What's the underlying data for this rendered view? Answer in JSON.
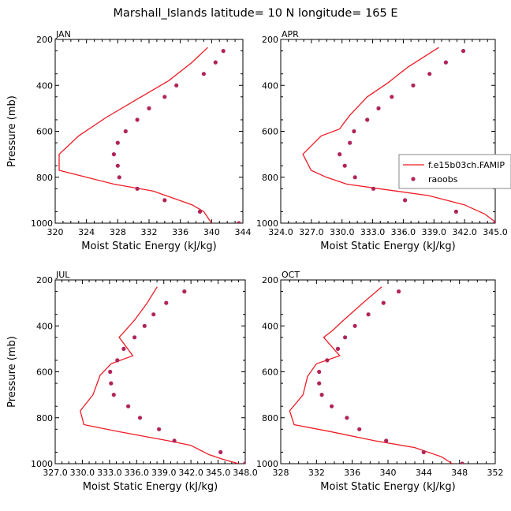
{
  "title": "Marshall_Islands   latitude=  10 N  longitude=  165 E",
  "colors": {
    "model": "#ee1c25",
    "obs": "#b0245a",
    "axis": "#000000"
  },
  "chart_data": [
    {
      "type": "line",
      "panel": "JAN",
      "title": "JAN",
      "xlabel": "Moist Static Energy (kJ/kg)",
      "ylabel": "Pressure (mb)",
      "xlim": [
        320,
        344
      ],
      "ylim": [
        1000,
        200
      ],
      "xticks": [
        320,
        324,
        328,
        332,
        336,
        340,
        344
      ],
      "xtick_labels": [
        "320",
        "324",
        "328",
        "332",
        "336",
        "340",
        "344"
      ],
      "yticks": [
        200,
        400,
        600,
        800,
        1000
      ],
      "ytick_labels": [
        "200",
        "400",
        "600",
        "800",
        "1000"
      ],
      "legend": null,
      "series": [
        {
          "name": "f.e15b03ch.FAMIP",
          "kind": "line",
          "points": [
            [
              339.5,
              235
            ],
            [
              337.5,
              300
            ],
            [
              334.5,
              380
            ],
            [
              330.5,
              460
            ],
            [
              326.5,
              540
            ],
            [
              323,
              620
            ],
            [
              320.5,
              700
            ],
            [
              320.5,
              770
            ],
            [
              324,
              800
            ],
            [
              327.5,
              830
            ],
            [
              332.5,
              860
            ],
            [
              337.5,
              920
            ],
            [
              339,
              950
            ],
            [
              340,
              1000
            ]
          ]
        },
        {
          "name": "raoobs",
          "kind": "scatter",
          "points": [
            [
              341.5,
              250
            ],
            [
              340.5,
              300
            ],
            [
              339,
              350
            ],
            [
              335.5,
              400
            ],
            [
              334,
              450
            ],
            [
              332,
              500
            ],
            [
              330.5,
              550
            ],
            [
              329,
              600
            ],
            [
              328,
              650
            ],
            [
              327.5,
              700
            ],
            [
              328,
              750
            ],
            [
              328.2,
              800
            ],
            [
              330.5,
              850
            ],
            [
              334,
              900
            ],
            [
              338.5,
              950
            ],
            [
              343.5,
              1000
            ]
          ]
        }
      ]
    },
    {
      "type": "line",
      "panel": "APR",
      "title": "APR",
      "xlabel": "Moist Static Energy (kJ/kg)",
      "ylabel": "",
      "xlim": [
        324.03,
        345.03
      ],
      "ylim": [
        1000,
        200
      ],
      "xticks": [
        324.03,
        327.03,
        330.03,
        333.03,
        336.03,
        339.03,
        342.03,
        345.03
      ],
      "xtick_labels": [
        "324.0",
        "327.0",
        "330.0",
        "333.0",
        "336.0",
        "339.0",
        "342.0",
        "345.0"
      ],
      "yticks": [
        200,
        400,
        600,
        800,
        1000
      ],
      "ytick_labels": [
        "200",
        "400",
        "600",
        "800",
        "1000"
      ],
      "legend": {
        "location": "right",
        "entries": [
          "f.e15b03ch.FAMIP",
          "raoobs"
        ]
      },
      "series": [
        {
          "name": "f.e15b03ch.FAMIP",
          "kind": "line",
          "points": [
            [
              339.5,
              235
            ],
            [
              336.5,
              320
            ],
            [
              334.5,
              390
            ],
            [
              332.5,
              450
            ],
            [
              330.8,
              530
            ],
            [
              330.2,
              565
            ],
            [
              329.8,
              590
            ],
            [
              328,
              620
            ],
            [
              326.2,
              700
            ],
            [
              327,
              770
            ],
            [
              328.5,
              800
            ],
            [
              330.5,
              830
            ],
            [
              334.5,
              855
            ],
            [
              338.5,
              880
            ],
            [
              342,
              920
            ],
            [
              344,
              960
            ],
            [
              345.2,
              1000
            ]
          ]
        },
        {
          "name": "raoobs",
          "kind": "scatter",
          "points": [
            [
              341.9,
              250
            ],
            [
              340.2,
              300
            ],
            [
              338.6,
              350
            ],
            [
              337,
              400
            ],
            [
              334.9,
              450
            ],
            [
              333.6,
              500
            ],
            [
              332.5,
              550
            ],
            [
              331.2,
              600
            ],
            [
              330.8,
              650
            ],
            [
              329.8,
              700
            ],
            [
              330.3,
              750
            ],
            [
              331.3,
              800
            ],
            [
              333.1,
              850
            ],
            [
              336.2,
              900
            ],
            [
              341.2,
              950
            ],
            [
              345,
              1000
            ]
          ]
        }
      ]
    },
    {
      "type": "line",
      "panel": "JUL",
      "title": "JUL",
      "xlabel": "Moist Static Energy (kJ/kg)",
      "ylabel": "Pressure (mb)",
      "xlim": [
        327.03,
        348.03
      ],
      "ylim": [
        1000,
        200
      ],
      "xticks": [
        327.03,
        330.03,
        333.03,
        336.03,
        339.03,
        342.03,
        345.03,
        348.03
      ],
      "xtick_labels": [
        "327.0",
        "330.0",
        "333.0",
        "336.0",
        "339.0",
        "342.0",
        "345.0",
        "348.0"
      ],
      "yticks": [
        200,
        400,
        600,
        800,
        1000
      ],
      "ytick_labels": [
        "200",
        "400",
        "600",
        "800",
        "1000"
      ],
      "legend": null,
      "series": [
        {
          "name": "f.e15b03ch.FAMIP",
          "kind": "line",
          "points": [
            [
              338.3,
              230
            ],
            [
              337.2,
              300
            ],
            [
              335.8,
              375
            ],
            [
              335,
              410
            ],
            [
              334.1,
              450
            ],
            [
              335.6,
              530
            ],
            [
              333.2,
              565
            ],
            [
              332,
              615
            ],
            [
              331.2,
              700
            ],
            [
              329.8,
              770
            ],
            [
              330.2,
              830
            ],
            [
              334,
              860
            ],
            [
              339.5,
              900
            ],
            [
              342,
              920
            ],
            [
              344,
              960
            ],
            [
              345.5,
              980
            ],
            [
              347.3,
              1000
            ]
          ]
        },
        {
          "name": "raoobs",
          "kind": "scatter",
          "points": [
            [
              341.3,
              250
            ],
            [
              339.3,
              300
            ],
            [
              337.9,
              350
            ],
            [
              336.9,
              400
            ],
            [
              335.8,
              450
            ],
            [
              334.6,
              500
            ],
            [
              333.9,
              550
            ],
            [
              333.1,
              600
            ],
            [
              333.2,
              650
            ],
            [
              333.5,
              700
            ],
            [
              335.1,
              750
            ],
            [
              336.4,
              800
            ],
            [
              338.5,
              850
            ],
            [
              340.2,
              900
            ],
            [
              345.3,
              950
            ],
            [
              348,
              1000
            ]
          ]
        }
      ]
    },
    {
      "type": "line",
      "panel": "OCT",
      "title": "OCT",
      "xlabel": "Moist Static Energy (kJ/kg)",
      "ylabel": "",
      "xlim": [
        328,
        352
      ],
      "ylim": [
        1000,
        200
      ],
      "xticks": [
        328,
        332,
        336,
        340,
        344,
        348,
        352
      ],
      "xtick_labels": [
        "328",
        "332",
        "336",
        "340",
        "344",
        "348",
        "352"
      ],
      "yticks": [
        200,
        400,
        600,
        800,
        1000
      ],
      "ytick_labels": [
        "200",
        "400",
        "600",
        "800",
        "1000"
      ],
      "legend": null,
      "series": [
        {
          "name": "f.e15b03ch.FAMIP",
          "kind": "line",
          "points": [
            [
              339.3,
              230
            ],
            [
              337.2,
              300
            ],
            [
              334.9,
              380
            ],
            [
              333.8,
              420
            ],
            [
              332.8,
              450
            ],
            [
              334.6,
              530
            ],
            [
              332,
              565
            ],
            [
              331,
              620
            ],
            [
              330.5,
              700
            ],
            [
              329,
              770
            ],
            [
              329.5,
              830
            ],
            [
              333.5,
              860
            ],
            [
              338.5,
              900
            ],
            [
              343,
              930
            ],
            [
              346,
              970
            ],
            [
              347.2,
              1000
            ]
          ]
        },
        {
          "name": "raoobs",
          "kind": "scatter",
          "points": [
            [
              341.2,
              250
            ],
            [
              339.5,
              300
            ],
            [
              337.8,
              350
            ],
            [
              336.3,
              400
            ],
            [
              335.2,
              450
            ],
            [
              334.4,
              500
            ],
            [
              333.2,
              550
            ],
            [
              332.3,
              600
            ],
            [
              332.3,
              650
            ],
            [
              332.6,
              700
            ],
            [
              333.7,
              750
            ],
            [
              335.4,
              800
            ],
            [
              336.8,
              850
            ],
            [
              339.8,
              900
            ],
            [
              344,
              950
            ],
            [
              348.3,
              1000
            ]
          ]
        }
      ]
    }
  ]
}
